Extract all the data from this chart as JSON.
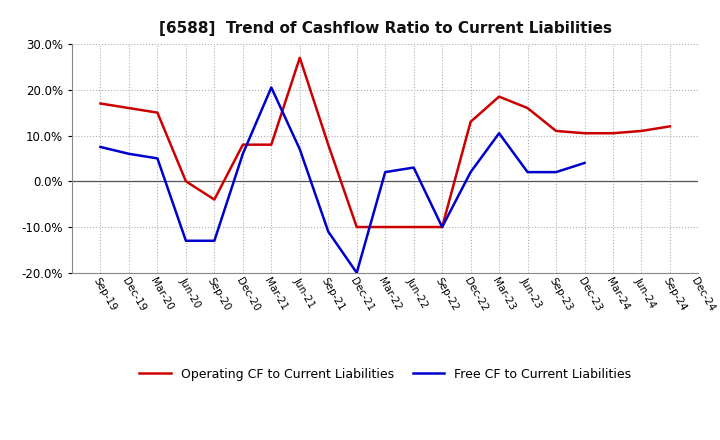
{
  "title": "[6588]  Trend of Cashflow Ratio to Current Liabilities",
  "x_labels": [
    "Sep-19",
    "Dec-19",
    "Mar-20",
    "Jun-20",
    "Sep-20",
    "Dec-20",
    "Mar-21",
    "Jun-21",
    "Sep-21",
    "Dec-21",
    "Mar-22",
    "Jun-22",
    "Sep-22",
    "Dec-22",
    "Mar-23",
    "Jun-23",
    "Sep-23",
    "Dec-23",
    "Mar-24",
    "Jun-24",
    "Sep-24",
    "Dec-24"
  ],
  "operating_cf": [
    17.0,
    16.0,
    15.0,
    0.0,
    -4.0,
    8.0,
    8.0,
    27.0,
    8.0,
    -10.0,
    -10.0,
    -10.0,
    -10.0,
    13.0,
    18.5,
    16.0,
    11.0,
    10.5,
    10.5,
    11.0,
    12.0,
    null
  ],
  "free_cf": [
    7.5,
    6.0,
    5.0,
    -13.0,
    -13.0,
    6.0,
    20.5,
    7.0,
    -11.0,
    -20.0,
    2.0,
    3.0,
    -10.0,
    2.0,
    10.5,
    2.0,
    2.0,
    4.0,
    null,
    null,
    null,
    null
  ],
  "operating_color": "#cc0000",
  "free_color": "#0000cc",
  "ylim": [
    -20.0,
    30.0
  ],
  "yticks": [
    -20.0,
    -10.0,
    0.0,
    10.0,
    20.0,
    30.0
  ],
  "background_color": "#ffffff",
  "grid_color": "#b0b0b0",
  "legend_op": "Operating CF to Current Liabilities",
  "legend_free": "Free CF to Current Liabilities"
}
